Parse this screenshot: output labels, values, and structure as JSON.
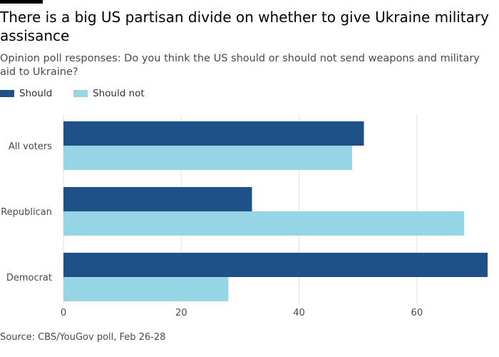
{
  "title": "There is a big US partisan divide on whether to give Ukraine military assisance",
  "subtitle": "Opinion poll responses: Do you think the US should or should not send weapons and military aid to Ukraine?",
  "source": "Source: CBS/YouGov poll, Feb 26-28",
  "chart_data": {
    "type": "bar",
    "orientation": "horizontal",
    "title": "There is a big US partisan divide on whether to give Ukraine military assisance",
    "subtitle": "Opinion poll responses: Do you think the US should or should not send weapons and military aid to Ukraine?",
    "categories": [
      "All voters",
      "Republican",
      "Democrat"
    ],
    "series": [
      {
        "name": "Should",
        "color": "#1f5189",
        "values": [
          51,
          32,
          72
        ]
      },
      {
        "name": "Should not",
        "color": "#96d5e6",
        "values": [
          49,
          68,
          28
        ]
      }
    ],
    "xlim": [
      0,
      72
    ],
    "xticks": [
      0,
      20,
      40,
      60
    ],
    "grid": true,
    "legend": "top-left"
  }
}
